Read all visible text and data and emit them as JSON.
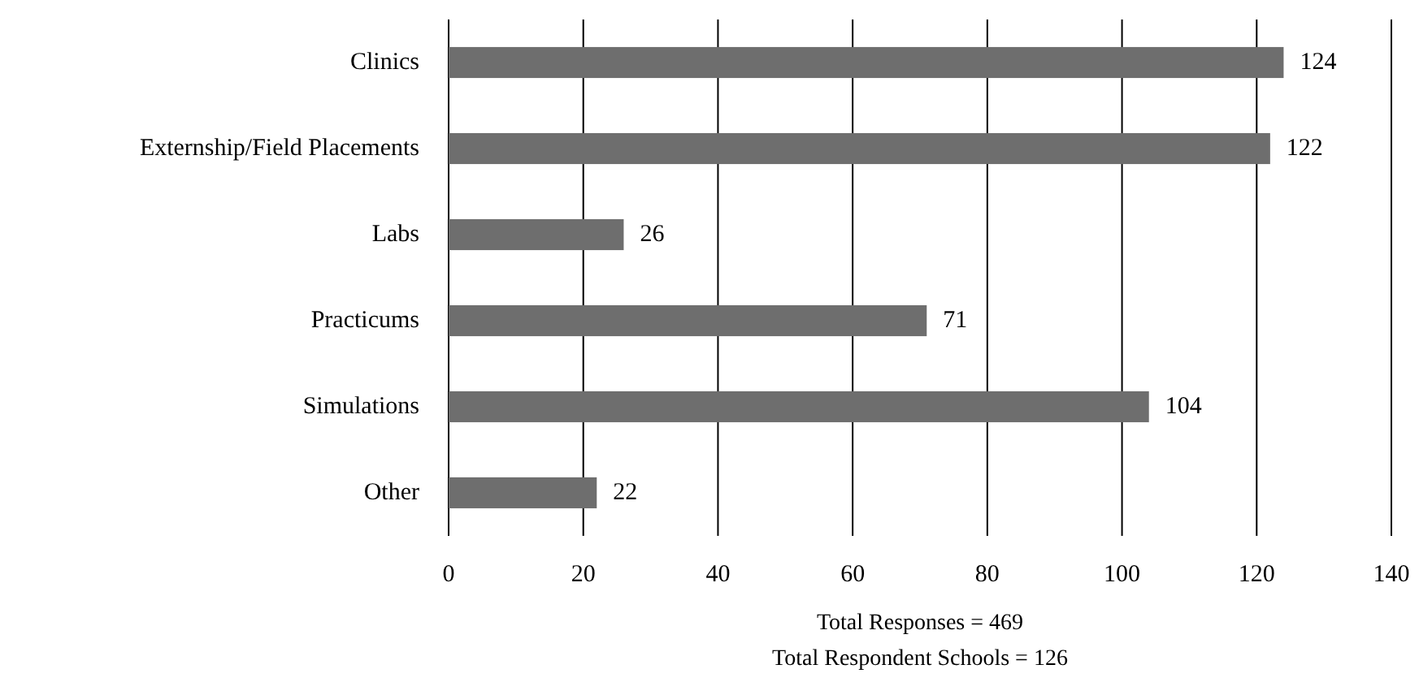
{
  "chart_data": {
    "type": "bar",
    "orientation": "horizontal",
    "categories": [
      "Clinics",
      "Externship/Field Placements",
      "Labs",
      "Practicums",
      "Simulations",
      "Other"
    ],
    "values": [
      124,
      122,
      26,
      71,
      104,
      22
    ],
    "color": "#6e6e6e",
    "xlim": [
      0,
      140
    ],
    "xticks": [
      0,
      20,
      40,
      60,
      80,
      100,
      120,
      140
    ],
    "grid": "x",
    "data_labels": true,
    "annotations": [
      "Total Responses = 469",
      "Total Respondent Schools = 126"
    ]
  }
}
